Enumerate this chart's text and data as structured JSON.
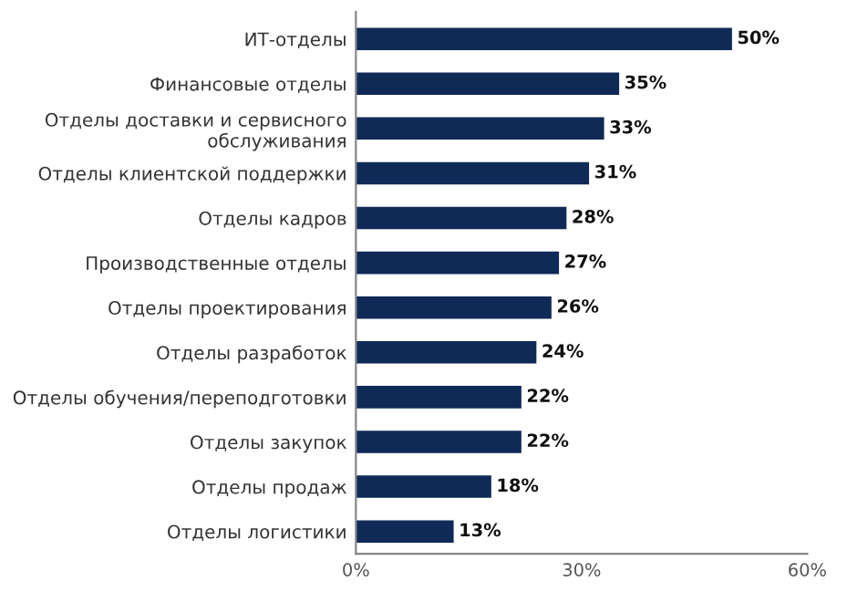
{
  "chart_data": {
    "type": "bar",
    "orientation": "horizontal",
    "categories": [
      "ИТ-отделы",
      "Финансовые отделы",
      "Отделы доставки и сервисного\nобслуживания",
      "Отделы клиентской поддержки",
      "Отделы кадров",
      "Производственные отделы",
      "Отделы проектирования",
      "Отделы разработок",
      "Отделы обучения/переподготовки",
      "Отделы закупок",
      "Отделы продаж",
      "Отделы логистики"
    ],
    "values": [
      50,
      35,
      33,
      31,
      28,
      27,
      26,
      24,
      22,
      22,
      18,
      13
    ],
    "value_labels": [
      "50%",
      "35%",
      "33%",
      "31%",
      "28%",
      "27%",
      "26%",
      "24%",
      "22%",
      "22%",
      "18%",
      "13%"
    ],
    "color": "#0f2a56",
    "xlim": [
      0,
      60
    ],
    "xticks": [
      {
        "value": 0,
        "label": "0%"
      },
      {
        "value": 30,
        "label": "30%"
      },
      {
        "value": 60,
        "label": "60%"
      }
    ],
    "grid": false,
    "legend": false
  }
}
